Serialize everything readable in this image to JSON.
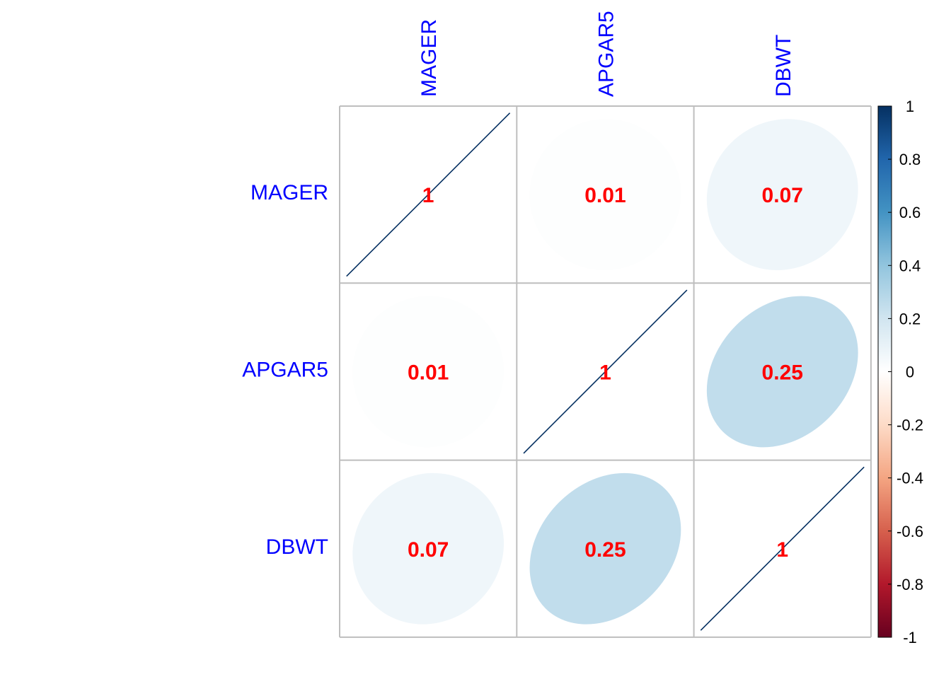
{
  "chart_data": {
    "type": "heatmap",
    "method": "ellipse",
    "variables": [
      "MAGER",
      "APGAR5",
      "DBWT"
    ],
    "matrix": [
      [
        1,
        0.01,
        0.07
      ],
      [
        0.01,
        1,
        0.25
      ],
      [
        0.07,
        0.25,
        1
      ]
    ],
    "value_labels": [
      [
        "1",
        "0.01",
        "0.07"
      ],
      [
        "0.01",
        "1",
        "0.25"
      ],
      [
        "0.07",
        "0.25",
        "1"
      ]
    ],
    "colorbar": {
      "range": [
        -1,
        1
      ],
      "ticks": [
        1,
        0.8,
        0.6,
        0.4,
        0.2,
        0,
        -0.2,
        -0.4,
        -0.6,
        -0.8,
        -1
      ],
      "tick_labels": [
        "1",
        "0.8",
        "0.6",
        "0.4",
        "0.2",
        "0",
        "-0.2",
        "-0.4",
        "-0.6",
        "-0.8",
        "-1"
      ]
    },
    "colors": {
      "var_label": "#0000ff",
      "value_label": "#ff0000",
      "grid": "#bebebe",
      "line": "#053061",
      "ramp": [
        "#67001F",
        "#B2182B",
        "#D6604D",
        "#F4A582",
        "#FDDBC7",
        "#FFFFFF",
        "#D1E5F0",
        "#92C5DE",
        "#4393C3",
        "#2166AC",
        "#053061"
      ]
    }
  }
}
